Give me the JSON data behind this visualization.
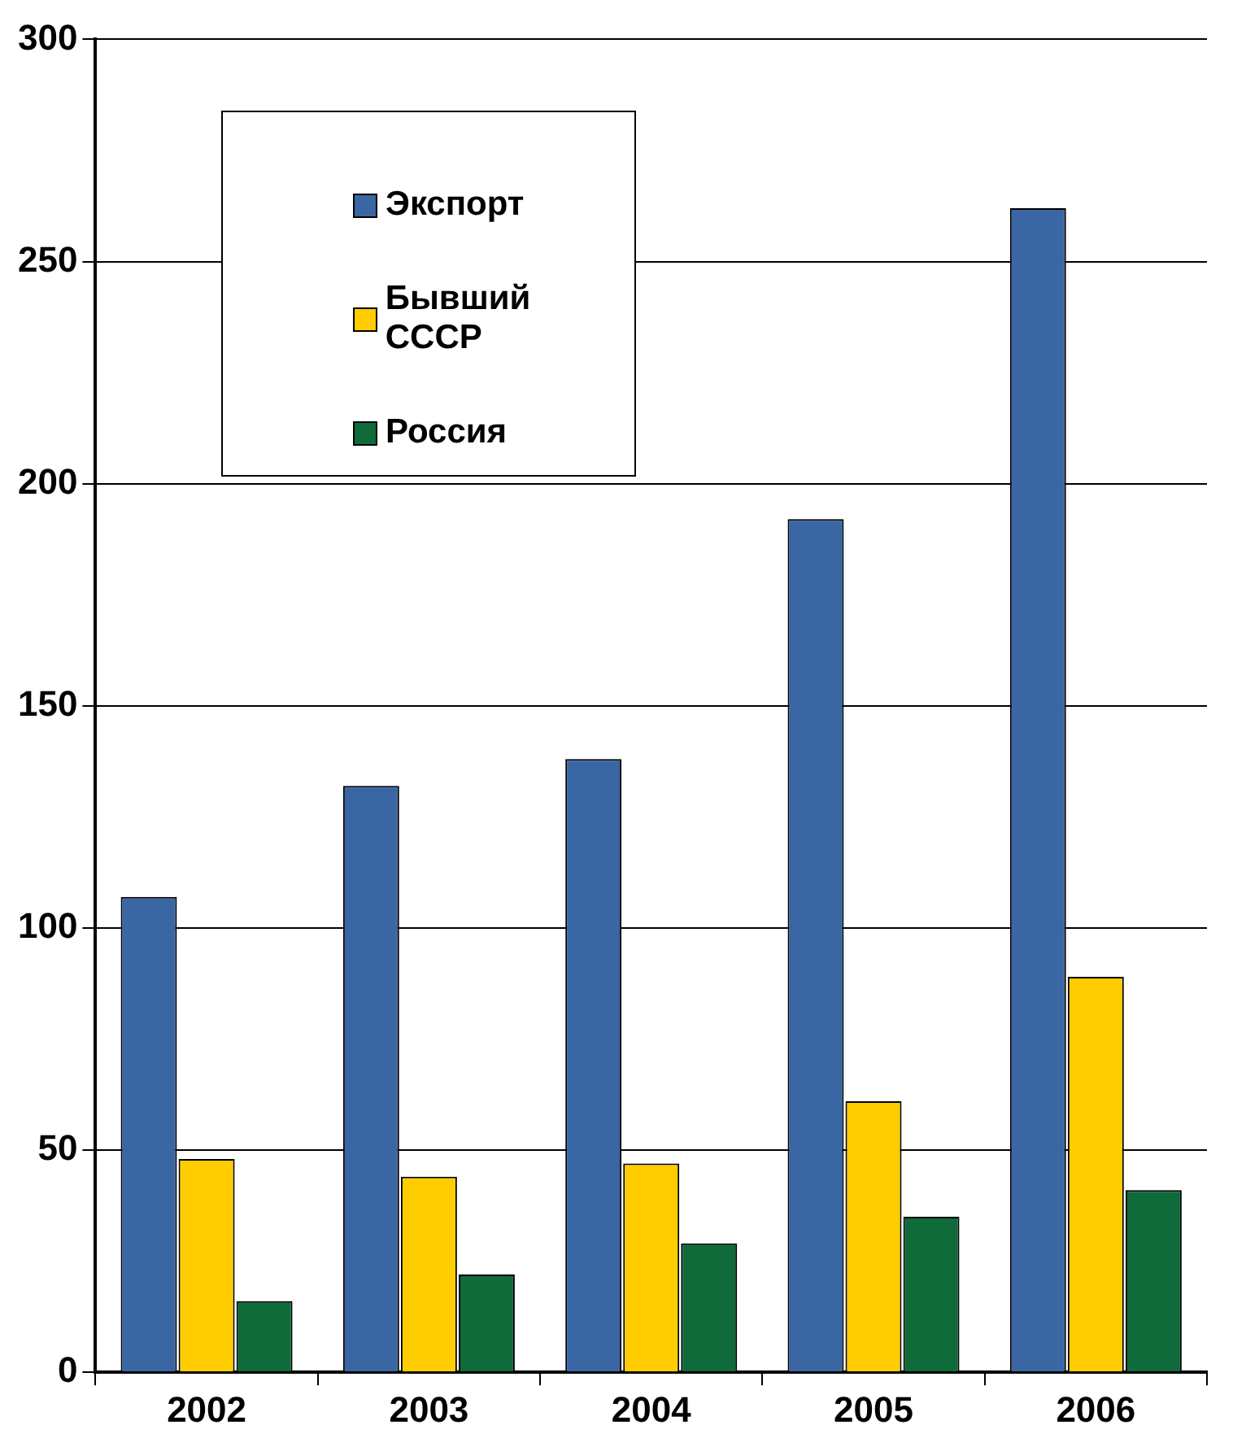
{
  "chart_data": {
    "type": "bar",
    "categories": [
      "2002",
      "2003",
      "2004",
      "2005",
      "2006"
    ],
    "series": [
      {
        "name": "Экспорт",
        "color": "#3a67a3",
        "values": [
          107,
          132,
          138,
          192,
          262
        ]
      },
      {
        "name": "Бывший СССР",
        "color": "#ffcc00",
        "values": [
          48,
          44,
          47,
          61,
          89
        ]
      },
      {
        "name": "Россия",
        "color": "#0f6b3a",
        "values": [
          16,
          22,
          29,
          35,
          41
        ]
      }
    ],
    "ylim": [
      0,
      300
    ],
    "yticks": [
      0,
      50,
      100,
      150,
      200,
      250,
      300
    ],
    "grid": "y",
    "legend": "top left"
  }
}
